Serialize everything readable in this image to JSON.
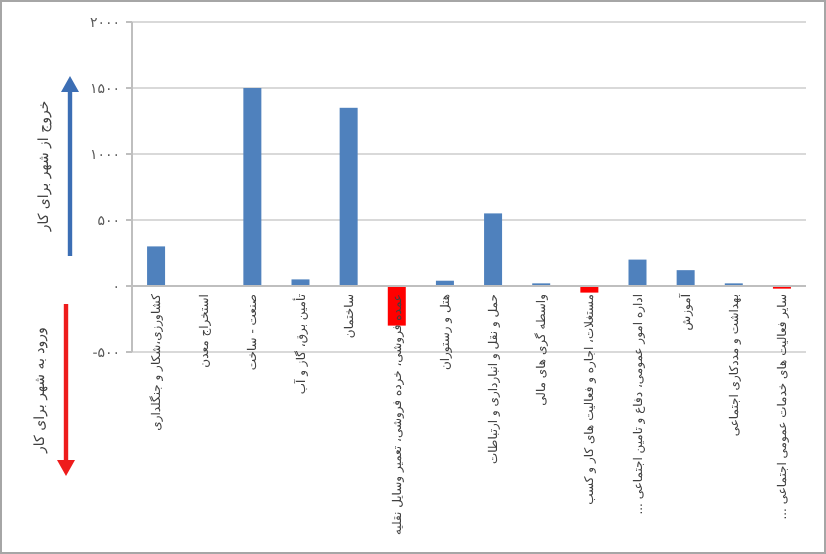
{
  "chart_data": {
    "type": "bar",
    "categories": [
      "کشاورزی،شکار و جنگلداری",
      "استخراج معدن",
      "صنعت - ساخت",
      "تأمین برق، گاز و آب",
      "ساختمان",
      "عمده فروشی، خرده فروشی، تعمیر وسایل نقلیه",
      "هتل و رستوران",
      "حمل و نقل و انبارداری و ارتباطات",
      "واسطه گری های مالی",
      "مستغلات، اجاره و فعالیت های کار و کسب",
      "اداره امور عمومی، دفاع و تامین اجتماعی ...",
      "آموزش",
      "بهداشت و مددکاری اجتماعی",
      "سایر فعالیت های خدمات عمومی اجتماعی ..."
    ],
    "values": [
      300,
      0,
      1500,
      50,
      1350,
      -300,
      40,
      550,
      20,
      -50,
      200,
      120,
      20,
      -20
    ],
    "colors": [
      "#4f81bd",
      "#4f81bd",
      "#4f81bd",
      "#4f81bd",
      "#4f81bd",
      "#ff0000",
      "#4f81bd",
      "#4f81bd",
      "#4f81bd",
      "#ff0000",
      "#4f81bd",
      "#4f81bd",
      "#4f81bd",
      "#ff0000"
    ],
    "ylim": [
      -500,
      2000
    ],
    "yticks": [
      {
        "value": -500,
        "label": "-۵۰۰"
      },
      {
        "value": 0,
        "label": "۰"
      },
      {
        "value": 500,
        "label": "۵۰۰"
      },
      {
        "value": 1000,
        "label": "۱۰۰۰"
      },
      {
        "value": 1500,
        "label": "۱۵۰۰"
      },
      {
        "value": 2000,
        "label": "۲۰۰۰"
      }
    ],
    "grid": "y",
    "annotations": [
      "خروج از شهر برای کار",
      "ورود به شهر برای کار"
    ]
  }
}
